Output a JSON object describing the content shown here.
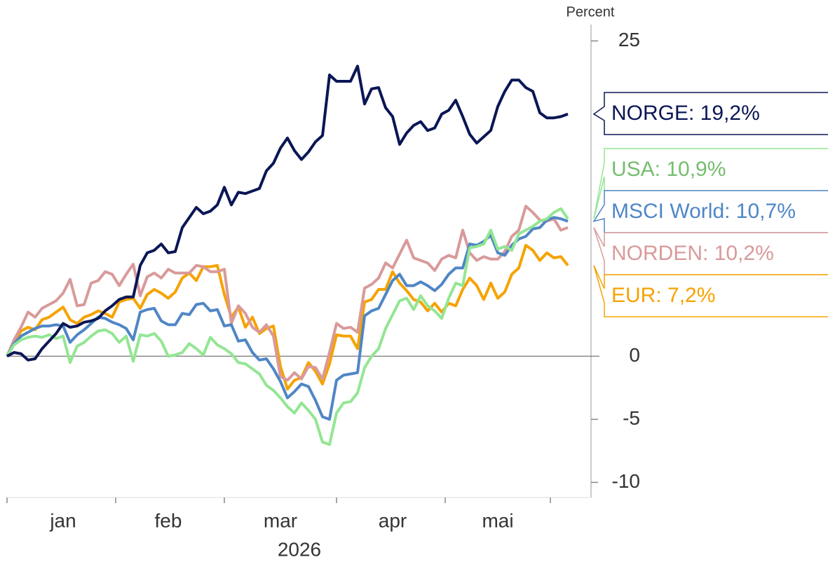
{
  "chart_data": {
    "type": "line",
    "y_label": "Percent",
    "x_label": "2026",
    "categories": [
      null,
      null,
      null,
      null,
      null,
      null,
      null,
      null,
      "jan",
      null,
      null,
      null,
      null,
      null,
      null,
      null,
      null,
      null,
      null,
      null,
      null,
      null,
      null,
      "feb",
      null,
      null,
      null,
      null,
      null,
      null,
      null,
      null,
      null,
      null,
      null,
      null,
      null,
      null,
      null,
      "mar",
      null,
      null,
      null,
      null,
      null,
      null,
      null,
      null,
      null,
      null,
      null,
      null,
      null,
      null,
      null,
      "apr",
      null,
      null,
      null,
      null,
      null,
      null,
      null,
      null,
      null,
      null,
      null,
      null,
      null,
      null,
      "mai",
      null,
      null,
      null,
      null,
      null,
      null,
      null,
      null,
      null,
      null
    ],
    "ylim": [
      -11.2,
      26.3
    ],
    "yticks": [
      -10,
      -5,
      0,
      25
    ],
    "series": [
      {
        "label": "NORGE: 19,2%",
        "color": "#0a1655",
        "text_color": "#0a1655",
        "values": [
          0,
          0.3,
          0.2,
          -0.3,
          -0.2,
          0.6,
          1.2,
          1.8,
          2.6,
          2.3,
          2.4,
          2.7,
          2.8,
          3.0,
          3.6,
          4.0,
          4.5,
          4.7,
          4.7,
          7.2,
          8.2,
          8.4,
          8.9,
          8.2,
          8.3,
          10.2,
          11.0,
          11.8,
          11.3,
          11.5,
          12.0,
          13.4,
          12.0,
          13.0,
          12.9,
          13.1,
          13.3,
          14.7,
          15.3,
          16.5,
          17.3,
          16.3,
          15.6,
          16.2,
          17.0,
          17.5,
          22.3,
          21.8,
          21.8,
          21.8,
          23.0,
          20.0,
          21.2,
          21.3,
          19.7,
          19.0,
          16.8,
          17.7,
          18.3,
          18.6,
          17.9,
          18.1,
          19.2,
          19.5,
          20.3,
          19.0,
          17.6,
          16.9,
          17.4,
          17.9,
          19.8,
          21.0,
          21.9,
          21.9,
          21.3,
          21.0,
          19.3,
          18.9,
          18.9,
          19.0,
          19.2
        ]
      },
      {
        "label": "USA: 10,9%",
        "color": "#93e693",
        "text_color": "#76bd70",
        "values": [
          0,
          0.9,
          1.3,
          1.5,
          1.6,
          1.5,
          1.7,
          1.4,
          1.6,
          -0.5,
          0.8,
          1.1,
          1.6,
          2.0,
          2.1,
          1.8,
          1.1,
          1.6,
          -0.4,
          1.7,
          1.6,
          1.8,
          1.2,
          0.0,
          0.1,
          0.3,
          1.0,
          0.6,
          0.1,
          1.5,
          0.9,
          0.6,
          0.2,
          -0.5,
          -0.6,
          -1.0,
          -1.4,
          -2.3,
          -2.7,
          -3.3,
          -4.0,
          -4.5,
          -3.7,
          -4.3,
          -5.0,
          -6.8,
          -7.0,
          -4.5,
          -3.7,
          -3.6,
          -2.9,
          -0.9,
          0.0,
          0.6,
          2.2,
          3.3,
          4.4,
          4.6,
          3.7,
          4.8,
          4.0,
          3.6,
          3.0,
          4.6,
          5.8,
          5.6,
          8.6,
          8.7,
          8.9,
          10.0,
          8.5,
          8.7,
          8.4,
          9.7,
          10.0,
          10.3,
          10.7,
          10.9,
          11.4,
          11.7,
          10.9
        ]
      },
      {
        "label": "MSCI World: 10,7%",
        "color": "#4f86c6",
        "text_color": "#4f86c6",
        "values": [
          0,
          1.0,
          1.6,
          1.9,
          2.2,
          2.4,
          2.4,
          2.5,
          2.4,
          1.1,
          1.7,
          2.1,
          2.6,
          3.1,
          3.0,
          2.7,
          2.5,
          2.2,
          1.3,
          3.5,
          3.7,
          3.8,
          2.8,
          2.5,
          2.5,
          3.4,
          3.3,
          4.1,
          4.2,
          3.6,
          3.7,
          2.4,
          2.5,
          1.2,
          1.3,
          0.3,
          -0.3,
          -0.2,
          -1.0,
          -2.0,
          -3.3,
          -2.8,
          -2.2,
          -2.4,
          -3.5,
          -4.8,
          -5.0,
          -1.9,
          -1.5,
          -1.4,
          -1.3,
          3.2,
          3.6,
          3.8,
          4.9,
          6.0,
          6.5,
          5.6,
          5.6,
          5.9,
          5.6,
          5.2,
          5.7,
          6.5,
          7.0,
          7.0,
          8.9,
          8.8,
          9.1,
          9.6,
          8.2,
          8.0,
          8.8,
          9.3,
          9.5,
          10.1,
          10.2,
          10.8,
          11.0,
          10.9,
          10.7
        ]
      },
      {
        "label": "NORDEN: 10,2%",
        "color": "#d99a9a",
        "text_color": "#d99a9a",
        "values": [
          0,
          1.3,
          2.3,
          3.5,
          3.1,
          3.8,
          4.1,
          4.4,
          5.0,
          6.1,
          4.0,
          4.1,
          5.8,
          6.0,
          6.7,
          6.5,
          5.6,
          6.5,
          7.3,
          4.8,
          6.3,
          6.6,
          6.2,
          6.9,
          6.6,
          6.6,
          6.6,
          7.2,
          7.1,
          6.7,
          6.7,
          6.9,
          2.6,
          4.0,
          3.4,
          2.3,
          1.9,
          2.5,
          1.6,
          -1.6,
          -1.9,
          -1.3,
          -1.8,
          -0.8,
          -0.9,
          -1.8,
          0.3,
          2.6,
          2.2,
          2.3,
          1.9,
          5.4,
          5.7,
          6.2,
          7.4,
          7.0,
          8.1,
          9.2,
          7.8,
          7.6,
          7.4,
          6.8,
          7.7,
          8.0,
          7.8,
          10.0,
          8.2,
          7.6,
          7.9,
          7.7,
          7.7,
          8.3,
          9.5,
          10.0,
          11.9,
          11.4,
          10.8,
          10.7,
          10.9,
          10.0,
          10.2
        ]
      },
      {
        "label": "EUR: 7,2%",
        "color": "#f5a300",
        "text_color": "#f5a300",
        "values": [
          0,
          1.0,
          2.0,
          2.3,
          2.1,
          2.9,
          3.1,
          3.5,
          3.9,
          2.9,
          2.6,
          3.1,
          3.3,
          3.6,
          3.4,
          3.1,
          4.3,
          4.5,
          4.6,
          3.8,
          4.9,
          5.3,
          5.0,
          4.6,
          5.1,
          6.2,
          6.6,
          6.0,
          7.1,
          7.1,
          7.2,
          4.9,
          3.1,
          3.9,
          2.3,
          3.1,
          1.8,
          2.2,
          2.4,
          -0.8,
          -2.6,
          -1.9,
          -1.7,
          -0.5,
          -1.2,
          -2.2,
          -0.6,
          1.7,
          1.6,
          1.6,
          0.6,
          4.3,
          4.5,
          5.3,
          5.3,
          6.7,
          5.8,
          5.2,
          4.5,
          4.3,
          3.6,
          4.2,
          3.5,
          4.2,
          4.0,
          5.3,
          6.2,
          5.6,
          4.5,
          5.8,
          4.6,
          5.1,
          6.5,
          7.0,
          8.8,
          8.4,
          7.6,
          8.2,
          7.8,
          7.9,
          7.2
        ]
      }
    ]
  }
}
